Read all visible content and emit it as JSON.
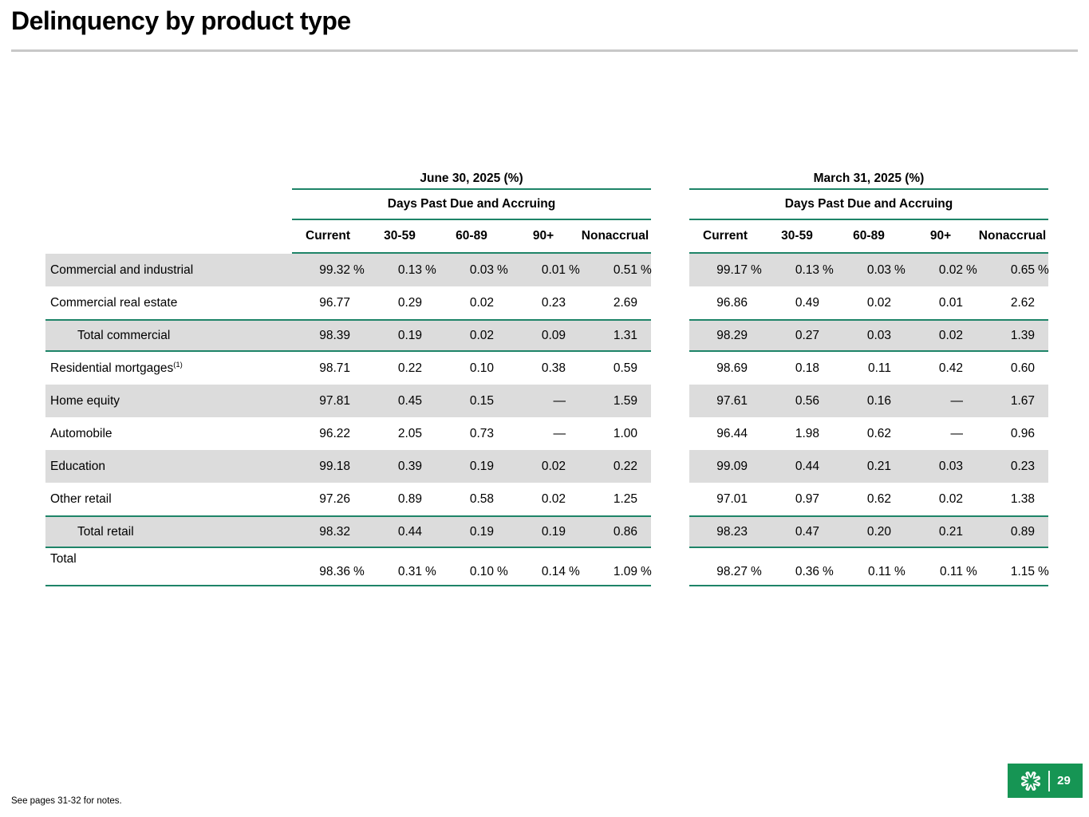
{
  "title": "Delinquency by product type",
  "footnote": "See pages 31-32 for notes.",
  "page_number": "29",
  "percent_suffix": "%",
  "colors": {
    "accent_line_green": "#1e8468",
    "stripe_gray": "#dcdcdc",
    "logo_green": "#169554",
    "title_rule_gray": "#c8c8c8"
  },
  "tables": {
    "groups": [
      {
        "title": "June 30, 2025 (%)",
        "subtitle": "Days Past Due and Accruing",
        "columns": [
          "Current",
          "30-59",
          "60-89",
          "90+",
          "Nonaccrual"
        ]
      },
      {
        "title": "March 31, 2025 (%)",
        "subtitle": "Days Past Due and Accruing",
        "columns": [
          "Current",
          "30-59",
          "60-89",
          "90+",
          "Nonaccrual"
        ]
      }
    ],
    "rows": [
      {
        "label": "Commercial and industrial",
        "style": "stripe",
        "pct": true,
        "june": [
          "99.32",
          "0.13",
          "0.03",
          "0.01",
          "0.51"
        ],
        "march": [
          "99.17",
          "0.13",
          "0.03",
          "0.02",
          "0.65"
        ]
      },
      {
        "label": "Commercial real estate",
        "june": [
          "96.77",
          "0.29",
          "0.02",
          "0.23",
          "2.69"
        ],
        "march": [
          "96.86",
          "0.49",
          "0.02",
          "0.01",
          "2.62"
        ]
      },
      {
        "label": "Total commercial",
        "indent": true,
        "style": "total",
        "june": [
          "98.39",
          "0.19",
          "0.02",
          "0.09",
          "1.31"
        ],
        "march": [
          "98.29",
          "0.27",
          "0.03",
          "0.02",
          "1.39"
        ]
      },
      {
        "label": "Residential mortgages",
        "sup": "(1)",
        "june": [
          "98.71",
          "0.22",
          "0.10",
          "0.38",
          "0.59"
        ],
        "march": [
          "98.69",
          "0.18",
          "0.11",
          "0.42",
          "0.60"
        ]
      },
      {
        "label": "Home equity",
        "style": "stripe",
        "june": [
          "97.81",
          "0.45",
          "0.15",
          "—",
          "1.59"
        ],
        "march": [
          "97.61",
          "0.56",
          "0.16",
          "—",
          "1.67"
        ]
      },
      {
        "label": "Automobile",
        "june": [
          "96.22",
          "2.05",
          "0.73",
          "—",
          "1.00"
        ],
        "march": [
          "96.44",
          "1.98",
          "0.62",
          "—",
          "0.96"
        ]
      },
      {
        "label": "Education",
        "style": "stripe",
        "june": [
          "99.18",
          "0.39",
          "0.19",
          "0.02",
          "0.22"
        ],
        "march": [
          "99.09",
          "0.44",
          "0.21",
          "0.03",
          "0.23"
        ]
      },
      {
        "label": "Other retail",
        "june": [
          "97.26",
          "0.89",
          "0.58",
          "0.02",
          "1.25"
        ],
        "march": [
          "97.01",
          "0.97",
          "0.62",
          "0.02",
          "1.38"
        ]
      },
      {
        "label": "Total retail",
        "indent": true,
        "style": "total",
        "june": [
          "98.32",
          "0.44",
          "0.19",
          "0.19",
          "0.86"
        ],
        "march": [
          "98.23",
          "0.47",
          "0.20",
          "0.21",
          "0.89"
        ]
      },
      {
        "label": "Total",
        "style": "grand",
        "pct": true,
        "june": [
          "98.36",
          "0.31",
          "0.10",
          "0.14",
          "1.09"
        ],
        "march": [
          "98.27",
          "0.36",
          "0.11",
          "0.11",
          "1.15"
        ]
      }
    ]
  }
}
